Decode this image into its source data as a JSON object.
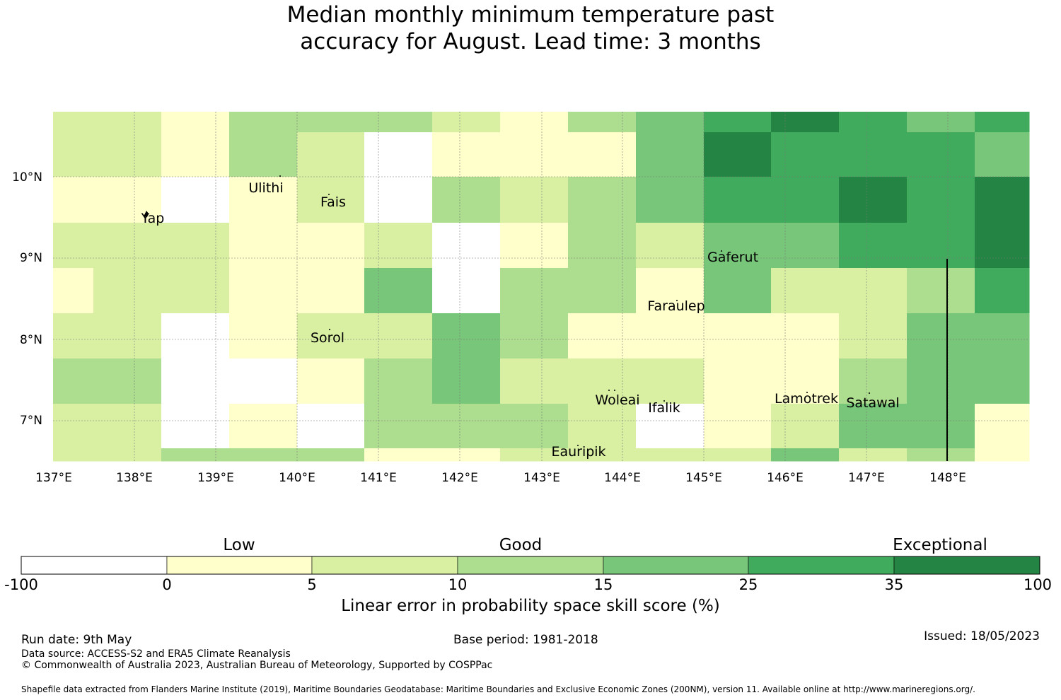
{
  "title": {
    "line1": "Median monthly minimum temperature past",
    "line2": "accuracy for August. Lead time: 3 months"
  },
  "map": {
    "lon_ticks": [
      "137°E",
      "138°E",
      "139°E",
      "140°E",
      "141°E",
      "142°E",
      "143°E",
      "144°E",
      "145°E",
      "146°E",
      "147°E",
      "148°E"
    ],
    "lat_ticks": [
      "10°N",
      "9°N",
      "8°N",
      "7°N"
    ],
    "places": [
      "Yap",
      "Ulithi",
      "Fais",
      "Gaferut",
      "Faraulep",
      "Sorol",
      "Woleai",
      "Ifalik",
      "Lamotrek",
      "Satawal",
      "Eauripik"
    ],
    "lon_range": [
      137,
      149
    ],
    "lat_range": [
      6.5,
      10.8
    ],
    "grid": true,
    "colors": {
      "0": "#ffffff",
      "1": "#ffffcc",
      "2": "#d9f0a3",
      "3": "#addd8e",
      "4": "#78c679",
      "5": "#41ab5d",
      "6": "#238443"
    }
  },
  "colorbar": {
    "headings": [
      "Low",
      "Good",
      "Exceptional"
    ],
    "ticks": [
      "-100",
      "0",
      "5",
      "10",
      "15",
      "25",
      "35",
      "100"
    ],
    "colors": [
      "#ffffff",
      "#ffffcc",
      "#d9f0a3",
      "#addd8e",
      "#78c679",
      "#41ab5d",
      "#238443"
    ],
    "label": "Linear error in probability space skill score (%)"
  },
  "footer": {
    "run_date": "Run date: 9th May",
    "base_period": "Base period: 1981-2018",
    "issued": "Issued: 18/05/2023",
    "data_source": "Data source: ACCESS-S2 and ERA5 Climate Reanalysis",
    "copyright": "© Commonwealth of Australia 2023, Australian Bureau of Meteorology, Supported by COSPPac",
    "shapefile": "Shapefile data extracted from Flanders Marine Institute (2019), Maritime Boundaries Geodatabase: Maritime Boundaries and Exclusive Economic Zones (200NM), version 11. Available online at http://www.marineregions.org/."
  }
}
